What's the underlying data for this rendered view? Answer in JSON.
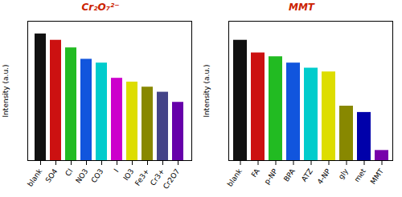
{
  "chart_data": [
    {
      "type": "bar",
      "categories": [
        "blank",
        "SO4",
        "Cl",
        "NO3",
        "CO3",
        "I",
        "IO3",
        "Fe3+",
        "Cr3+",
        "Cr2O7"
      ],
      "values": [
        1.0,
        0.95,
        0.89,
        0.8,
        0.77,
        0.65,
        0.62,
        0.58,
        0.54,
        0.46
      ],
      "colors": [
        "#111111",
        "#cc1111",
        "#22bb22",
        "#1155dd",
        "#00cccc",
        "#cc00cc",
        "#dddd00",
        "#888800",
        "#444488",
        "#6600aa"
      ],
      "ylabel": "Intensity (a.u.)",
      "ylim": [
        0,
        1.1
      ],
      "yticks": [],
      "tick_labels": "x",
      "annotations": [
        "Cr₂O₇²⁻"
      ]
    },
    {
      "type": "bar",
      "categories": [
        "blank",
        "FA",
        "p-NP",
        "BPA",
        "ATZ",
        "4-NP",
        "gly",
        "met",
        "MMT"
      ],
      "values": [
        0.95,
        0.85,
        0.82,
        0.77,
        0.73,
        0.7,
        0.43,
        0.38,
        0.08
      ],
      "colors": [
        "#111111",
        "#cc1111",
        "#22bb22",
        "#1155dd",
        "#00cccc",
        "#dddd00",
        "#888800",
        "#0000aa",
        "#7700aa"
      ],
      "ylabel": "Intensity (a.u.)",
      "ylim": [
        0,
        1.1
      ],
      "yticks": [],
      "tick_labels": "x",
      "annotations": [
        "MMT"
      ]
    }
  ]
}
